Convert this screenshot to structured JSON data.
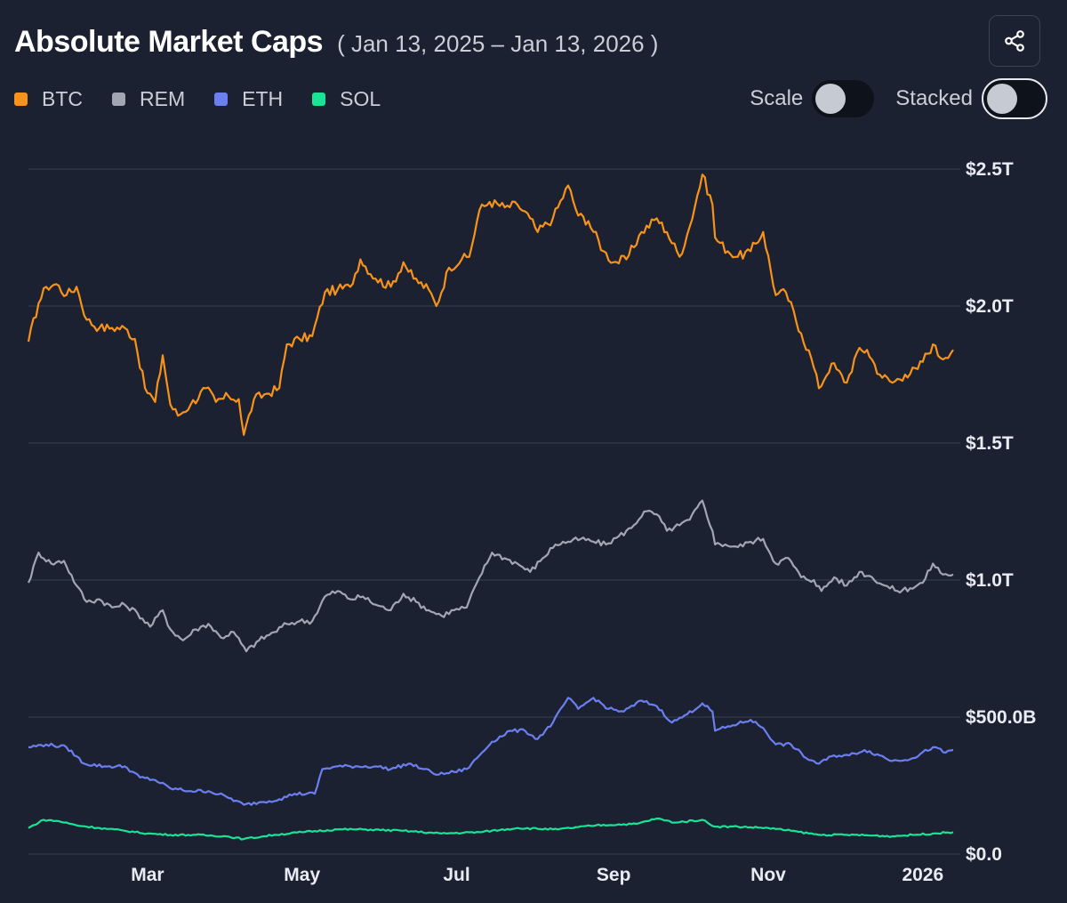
{
  "header": {
    "title": "Absolute Market Caps",
    "date_range": "( Jan 13, 2025 – Jan 13, 2026 )"
  },
  "controls": {
    "scale_label": "Scale",
    "scale_on": false,
    "stacked_label": "Stacked",
    "stacked_on": false,
    "share_icon": "share-icon"
  },
  "chart_data": {
    "type": "line",
    "title": "Absolute Market Caps",
    "subtitle": "( Jan 13, 2025 – Jan 13, 2026 )",
    "x_range": [
      "2025-01-13",
      "2026-01-13"
    ],
    "x_ticks": [
      {
        "label": "Mar",
        "date": "2025-03-01"
      },
      {
        "label": "May",
        "date": "2025-05-01"
      },
      {
        "label": "Jul",
        "date": "2025-07-01"
      },
      {
        "label": "Sep",
        "date": "2025-09-01"
      },
      {
        "label": "Nov",
        "date": "2025-11-01"
      },
      {
        "label": "2026",
        "date": "2026-01-01"
      }
    ],
    "y_ticks": [
      {
        "label": "$0.0",
        "value": 0
      },
      {
        "label": "$500.0B",
        "value": 500
      },
      {
        "label": "$1.0T",
        "value": 1000
      },
      {
        "label": "$1.5T",
        "value": 1500
      },
      {
        "label": "$2.0T",
        "value": 2000
      },
      {
        "label": "$2.5T",
        "value": 2500
      }
    ],
    "ylim": [
      0,
      2500
    ],
    "units": "billions USD",
    "grid": true,
    "legend_position": "top-left",
    "series": [
      {
        "name": "BTC",
        "color": "#f7931a",
        "points": [
          [
            "2025-01-13",
            1870
          ],
          [
            "2025-01-17",
            2010
          ],
          [
            "2025-01-20",
            2070
          ],
          [
            "2025-01-24",
            2080
          ],
          [
            "2025-01-28",
            2040
          ],
          [
            "2025-02-01",
            2070
          ],
          [
            "2025-02-05",
            1950
          ],
          [
            "2025-02-10",
            1920
          ],
          [
            "2025-02-15",
            1920
          ],
          [
            "2025-02-20",
            1920
          ],
          [
            "2025-02-24",
            1880
          ],
          [
            "2025-02-28",
            1700
          ],
          [
            "2025-03-04",
            1650
          ],
          [
            "2025-03-07",
            1820
          ],
          [
            "2025-03-10",
            1640
          ],
          [
            "2025-03-13",
            1600
          ],
          [
            "2025-03-18",
            1640
          ],
          [
            "2025-03-24",
            1700
          ],
          [
            "2025-03-28",
            1650
          ],
          [
            "2025-04-02",
            1670
          ],
          [
            "2025-04-06",
            1660
          ],
          [
            "2025-04-08",
            1530
          ],
          [
            "2025-04-12",
            1660
          ],
          [
            "2025-04-17",
            1680
          ],
          [
            "2025-04-22",
            1700
          ],
          [
            "2025-04-25",
            1860
          ],
          [
            "2025-04-30",
            1880
          ],
          [
            "2025-05-05",
            1890
          ],
          [
            "2025-05-10",
            2050
          ],
          [
            "2025-05-15",
            2060
          ],
          [
            "2025-05-20",
            2070
          ],
          [
            "2025-05-24",
            2170
          ],
          [
            "2025-05-30",
            2100
          ],
          [
            "2025-06-05",
            2070
          ],
          [
            "2025-06-10",
            2160
          ],
          [
            "2025-06-14",
            2100
          ],
          [
            "2025-06-20",
            2060
          ],
          [
            "2025-06-23",
            2000
          ],
          [
            "2025-06-28",
            2140
          ],
          [
            "2025-07-03",
            2170
          ],
          [
            "2025-07-06",
            2180
          ],
          [
            "2025-07-10",
            2350
          ],
          [
            "2025-07-14",
            2380
          ],
          [
            "2025-07-20",
            2360
          ],
          [
            "2025-07-25",
            2370
          ],
          [
            "2025-07-30",
            2320
          ],
          [
            "2025-08-02",
            2270
          ],
          [
            "2025-08-08",
            2320
          ],
          [
            "2025-08-14",
            2440
          ],
          [
            "2025-08-18",
            2330
          ],
          [
            "2025-08-22",
            2310
          ],
          [
            "2025-08-28",
            2200
          ],
          [
            "2025-09-01",
            2160
          ],
          [
            "2025-09-06",
            2170
          ],
          [
            "2025-09-12",
            2270
          ],
          [
            "2025-09-18",
            2320
          ],
          [
            "2025-09-22",
            2270
          ],
          [
            "2025-09-27",
            2180
          ],
          [
            "2025-10-01",
            2290
          ],
          [
            "2025-10-06",
            2480
          ],
          [
            "2025-10-10",
            2370
          ],
          [
            "2025-10-11",
            2250
          ],
          [
            "2025-10-16",
            2200
          ],
          [
            "2025-10-20",
            2180
          ],
          [
            "2025-10-25",
            2200
          ],
          [
            "2025-10-30",
            2270
          ],
          [
            "2025-11-04",
            2040
          ],
          [
            "2025-11-08",
            2050
          ],
          [
            "2025-11-14",
            1900
          ],
          [
            "2025-11-18",
            1810
          ],
          [
            "2025-11-21",
            1700
          ],
          [
            "2025-11-26",
            1790
          ],
          [
            "2025-12-02",
            1720
          ],
          [
            "2025-12-06",
            1830
          ],
          [
            "2025-12-10",
            1840
          ],
          [
            "2025-12-15",
            1750
          ],
          [
            "2025-12-20",
            1720
          ],
          [
            "2025-12-25",
            1750
          ],
          [
            "2025-12-30",
            1770
          ],
          [
            "2026-01-05",
            1860
          ],
          [
            "2026-01-08",
            1810
          ],
          [
            "2026-01-13",
            1840
          ]
        ]
      },
      {
        "name": "REM",
        "color": "#a1a6b2",
        "points": [
          [
            "2025-01-13",
            990
          ],
          [
            "2025-01-17",
            1100
          ],
          [
            "2025-01-22",
            1060
          ],
          [
            "2025-01-27",
            1070
          ],
          [
            "2025-02-01",
            980
          ],
          [
            "2025-02-05",
            920
          ],
          [
            "2025-02-10",
            930
          ],
          [
            "2025-02-15",
            900
          ],
          [
            "2025-02-20",
            910
          ],
          [
            "2025-02-25",
            880
          ],
          [
            "2025-03-02",
            830
          ],
          [
            "2025-03-07",
            890
          ],
          [
            "2025-03-10",
            820
          ],
          [
            "2025-03-15",
            780
          ],
          [
            "2025-03-20",
            820
          ],
          [
            "2025-03-25",
            840
          ],
          [
            "2025-03-30",
            790
          ],
          [
            "2025-04-04",
            810
          ],
          [
            "2025-04-09",
            740
          ],
          [
            "2025-04-14",
            780
          ],
          [
            "2025-04-20",
            810
          ],
          [
            "2025-04-25",
            840
          ],
          [
            "2025-04-30",
            850
          ],
          [
            "2025-05-05",
            850
          ],
          [
            "2025-05-10",
            940
          ],
          [
            "2025-05-15",
            960
          ],
          [
            "2025-05-20",
            930
          ],
          [
            "2025-05-25",
            940
          ],
          [
            "2025-05-30",
            910
          ],
          [
            "2025-06-05",
            890
          ],
          [
            "2025-06-10",
            950
          ],
          [
            "2025-06-15",
            920
          ],
          [
            "2025-06-20",
            890
          ],
          [
            "2025-06-25",
            870
          ],
          [
            "2025-06-30",
            890
          ],
          [
            "2025-07-05",
            900
          ],
          [
            "2025-07-10",
            1010
          ],
          [
            "2025-07-15",
            1100
          ],
          [
            "2025-07-20",
            1080
          ],
          [
            "2025-07-25",
            1060
          ],
          [
            "2025-07-30",
            1030
          ],
          [
            "2025-08-04",
            1080
          ],
          [
            "2025-08-09",
            1130
          ],
          [
            "2025-08-14",
            1140
          ],
          [
            "2025-08-19",
            1150
          ],
          [
            "2025-08-24",
            1140
          ],
          [
            "2025-08-29",
            1130
          ],
          [
            "2025-09-03",
            1160
          ],
          [
            "2025-09-08",
            1190
          ],
          [
            "2025-09-13",
            1250
          ],
          [
            "2025-09-18",
            1240
          ],
          [
            "2025-09-22",
            1180
          ],
          [
            "2025-09-27",
            1200
          ],
          [
            "2025-10-01",
            1220
          ],
          [
            "2025-10-06",
            1290
          ],
          [
            "2025-10-10",
            1180
          ],
          [
            "2025-10-11",
            1130
          ],
          [
            "2025-10-15",
            1130
          ],
          [
            "2025-10-20",
            1120
          ],
          [
            "2025-10-25",
            1140
          ],
          [
            "2025-10-30",
            1150
          ],
          [
            "2025-11-04",
            1060
          ],
          [
            "2025-11-09",
            1080
          ],
          [
            "2025-11-14",
            1010
          ],
          [
            "2025-11-19",
            1000
          ],
          [
            "2025-11-22",
            960
          ],
          [
            "2025-11-27",
            1010
          ],
          [
            "2025-12-02",
            980
          ],
          [
            "2025-12-07",
            1030
          ],
          [
            "2025-12-12",
            1010
          ],
          [
            "2025-12-17",
            980
          ],
          [
            "2025-12-22",
            960
          ],
          [
            "2025-12-27",
            970
          ],
          [
            "2026-01-01",
            990
          ],
          [
            "2026-01-05",
            1060
          ],
          [
            "2026-01-09",
            1020
          ],
          [
            "2026-01-13",
            1020
          ]
        ]
      },
      {
        "name": "ETH",
        "color": "#6c7ff0",
        "points": [
          [
            "2025-01-13",
            390
          ],
          [
            "2025-01-20",
            400
          ],
          [
            "2025-01-28",
            390
          ],
          [
            "2025-02-04",
            330
          ],
          [
            "2025-02-12",
            320
          ],
          [
            "2025-02-20",
            320
          ],
          [
            "2025-02-26",
            280
          ],
          [
            "2025-03-04",
            270
          ],
          [
            "2025-03-10",
            240
          ],
          [
            "2025-03-18",
            230
          ],
          [
            "2025-03-25",
            230
          ],
          [
            "2025-04-01",
            210
          ],
          [
            "2025-04-08",
            180
          ],
          [
            "2025-04-15",
            190
          ],
          [
            "2025-04-22",
            200
          ],
          [
            "2025-04-28",
            220
          ],
          [
            "2025-05-06",
            220
          ],
          [
            "2025-05-09",
            310
          ],
          [
            "2025-05-15",
            320
          ],
          [
            "2025-05-22",
            320
          ],
          [
            "2025-05-30",
            320
          ],
          [
            "2025-06-05",
            310
          ],
          [
            "2025-06-12",
            330
          ],
          [
            "2025-06-18",
            310
          ],
          [
            "2025-06-24",
            290
          ],
          [
            "2025-06-30",
            300
          ],
          [
            "2025-07-05",
            310
          ],
          [
            "2025-07-10",
            360
          ],
          [
            "2025-07-15",
            410
          ],
          [
            "2025-07-22",
            450
          ],
          [
            "2025-07-28",
            450
          ],
          [
            "2025-08-02",
            420
          ],
          [
            "2025-08-08",
            480
          ],
          [
            "2025-08-14",
            570
          ],
          [
            "2025-08-18",
            530
          ],
          [
            "2025-08-24",
            570
          ],
          [
            "2025-08-30",
            530
          ],
          [
            "2025-09-05",
            520
          ],
          [
            "2025-09-12",
            560
          ],
          [
            "2025-09-18",
            540
          ],
          [
            "2025-09-24",
            480
          ],
          [
            "2025-09-30",
            510
          ],
          [
            "2025-10-06",
            550
          ],
          [
            "2025-10-10",
            520
          ],
          [
            "2025-10-11",
            450
          ],
          [
            "2025-10-18",
            470
          ],
          [
            "2025-10-25",
            490
          ],
          [
            "2025-10-30",
            460
          ],
          [
            "2025-11-04",
            400
          ],
          [
            "2025-11-10",
            400
          ],
          [
            "2025-11-16",
            350
          ],
          [
            "2025-11-21",
            330
          ],
          [
            "2025-11-27",
            360
          ],
          [
            "2025-12-03",
            360
          ],
          [
            "2025-12-09",
            380
          ],
          [
            "2025-12-15",
            360
          ],
          [
            "2025-12-20",
            340
          ],
          [
            "2025-12-28",
            350
          ],
          [
            "2026-01-05",
            390
          ],
          [
            "2026-01-10",
            370
          ],
          [
            "2026-01-13",
            380
          ]
        ]
      },
      {
        "name": "SOL",
        "color": "#19e395",
        "points": [
          [
            "2025-01-13",
            95
          ],
          [
            "2025-01-19",
            125
          ],
          [
            "2025-01-25",
            120
          ],
          [
            "2025-02-01",
            105
          ],
          [
            "2025-02-10",
            95
          ],
          [
            "2025-02-20",
            85
          ],
          [
            "2025-03-01",
            75
          ],
          [
            "2025-03-10",
            70
          ],
          [
            "2025-03-20",
            70
          ],
          [
            "2025-04-01",
            65
          ],
          [
            "2025-04-08",
            55
          ],
          [
            "2025-04-20",
            70
          ],
          [
            "2025-05-01",
            80
          ],
          [
            "2025-05-15",
            90
          ],
          [
            "2025-05-25",
            90
          ],
          [
            "2025-06-10",
            85
          ],
          [
            "2025-06-25",
            75
          ],
          [
            "2025-07-10",
            80
          ],
          [
            "2025-07-25",
            95
          ],
          [
            "2025-08-10",
            90
          ],
          [
            "2025-08-25",
            105
          ],
          [
            "2025-09-10",
            110
          ],
          [
            "2025-09-18",
            130
          ],
          [
            "2025-09-25",
            115
          ],
          [
            "2025-10-06",
            125
          ],
          [
            "2025-10-11",
            100
          ],
          [
            "2025-10-20",
            100
          ],
          [
            "2025-11-01",
            95
          ],
          [
            "2025-11-10",
            85
          ],
          [
            "2025-11-21",
            70
          ],
          [
            "2025-12-05",
            70
          ],
          [
            "2025-12-20",
            65
          ],
          [
            "2026-01-05",
            75
          ],
          [
            "2026-01-13",
            80
          ]
        ]
      }
    ]
  }
}
